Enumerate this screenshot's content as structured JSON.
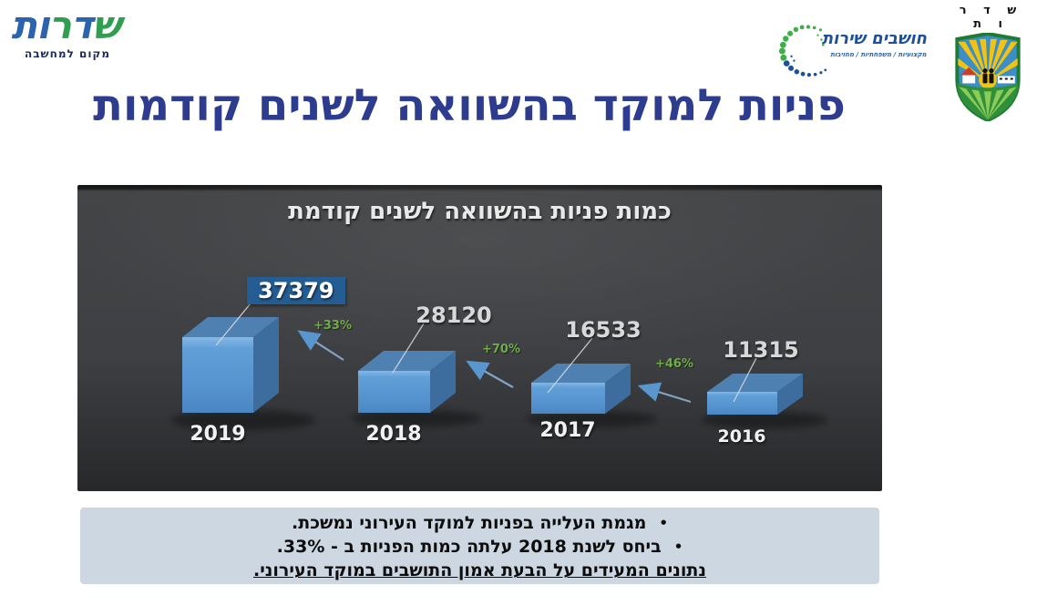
{
  "brand": {
    "name": "שדרות",
    "tagline": "מקום למחשבה"
  },
  "service_logo": {
    "title": "חושבים שירות",
    "subtitle": "מקצועיות / משפחתיות / מחויבות"
  },
  "emblem": {
    "city": "ש ד ר ו ת"
  },
  "page_title": "פניות למוקד בהשוואה לשנים קודמות",
  "chart": {
    "title": "כמות פניות בהשוואה לשנים קודמת",
    "bars": [
      {
        "year": "2019",
        "value": "37379"
      },
      {
        "year": "2018",
        "value": "28120"
      },
      {
        "year": "2017",
        "value": "16533"
      },
      {
        "year": "2016",
        "value": "11315"
      }
    ],
    "growth": [
      {
        "label": "+33%"
      },
      {
        "label": "+70%"
      },
      {
        "label": "+46%"
      }
    ]
  },
  "chart_data": {
    "type": "bar",
    "title": "כמות פניות בהשוואה לשנים קודמת",
    "categories": [
      "2019",
      "2018",
      "2017",
      "2016"
    ],
    "values": [
      37379,
      28120,
      16533,
      11315
    ],
    "annotations": [
      {
        "between": [
          "2018",
          "2019"
        ],
        "label": "+33%"
      },
      {
        "between": [
          "2017",
          "2018"
        ],
        "label": "+70%"
      },
      {
        "between": [
          "2016",
          "2017"
        ],
        "label": "+46%"
      }
    ],
    "style": "3d-cubes",
    "bar_color": "#5b9bd5",
    "background": "dark gray gradient",
    "highlighted_bar": "2019",
    "legend": "none",
    "grid": "off"
  },
  "notes": {
    "bullet": "•",
    "line1": "מגמת העלייה בפניות למוקד העירוני נמשכת.",
    "line2": "ביחס לשנת 2018 עלתה כמות הפניות ב - 33%.",
    "line3": "נתונים המעידים על הבעת אמון התושבים במוקד העירוני."
  },
  "colors": {
    "page_title": "#2d3c8e",
    "growth_label": "#70ad47",
    "value_highlight_bg": "#235d94",
    "bar_front": "#5b9bd5",
    "bar_side": "#3d6d9e",
    "bar_top": "#4e81b1",
    "notes_bg": "#ccd7e2",
    "panel_text": "#e9e9e9"
  }
}
